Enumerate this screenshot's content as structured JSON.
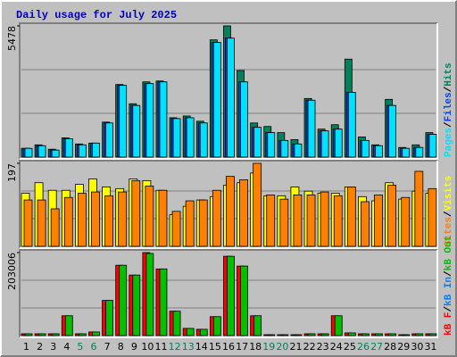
{
  "chart_data": [
    {
      "type": "bar",
      "title": "Daily usage for July 2025",
      "ylim": [
        0,
        5478
      ],
      "yticks": [
        5478
      ],
      "legend_reversed": true,
      "separator": "/",
      "series": [
        {
          "name": "Hits",
          "color": "#00805c",
          "values": [
            365,
            511,
            329,
            803,
            548,
            584,
            1461,
            3031,
            2228,
            3140,
            3177,
            1643,
            1716,
            1497,
            4894,
            5478,
            3615,
            1424,
            1278,
            1022,
            730,
            2447,
            1168,
            1351,
            4090,
            840,
            511,
            2410,
            402,
            511,
            1022
          ]
        },
        {
          "name": "Files",
          "color": "#0040ff",
          "values": [
            365,
            475,
            292,
            767,
            511,
            584,
            1424,
            2994,
            2155,
            3067,
            3140,
            1607,
            1643,
            1424,
            4784,
            4967,
            3140,
            1241,
            1022,
            694,
            548,
            2374,
            1095,
            1168,
            2703,
            694,
            475,
            2155,
            365,
            402,
            950
          ]
        },
        {
          "name": "Pages",
          "color": "#00e0ff",
          "values": [
            365,
            475,
            292,
            767,
            511,
            584,
            1424,
            2994,
            2155,
            3067,
            3140,
            1607,
            1643,
            1424,
            4784,
            4967,
            3140,
            1241,
            1022,
            694,
            548,
            2374,
            1095,
            1168,
            2703,
            694,
            475,
            2155,
            365,
            402,
            950
          ]
        }
      ]
    },
    {
      "type": "bar",
      "ylim": [
        0,
        197
      ],
      "yticks": [
        197
      ],
      "legend_reversed": true,
      "separator": "/",
      "series": [
        {
          "name": "Visits",
          "color": "#ffff00",
          "values": [
            126,
            151,
            133,
            133,
            147,
            160,
            141,
            137,
            160,
            156,
            133,
            75,
            95,
            110,
            118,
            145,
            151,
            174,
            120,
            120,
            141,
            131,
            126,
            126,
            141,
            118,
            108,
            151,
            112,
            131,
            126
          ]
        },
        {
          "name": "Sites",
          "color": "#ff8000",
          "values": [
            110,
            110,
            89,
            116,
            126,
            129,
            120,
            129,
            156,
            143,
            133,
            83,
            108,
            110,
            133,
            166,
            158,
            197,
            122,
            112,
            122,
            122,
            129,
            120,
            141,
            106,
            122,
            145,
            116,
            178,
            137
          ]
        }
      ]
    },
    {
      "type": "bar",
      "ylim": [
        0,
        203006
      ],
      "yticks": [
        203006
      ],
      "legend_reversed": false,
      "separator": "/",
      "categories": [
        "1",
        "2",
        "3",
        "4",
        "5",
        "6",
        "7",
        "8",
        "9",
        "10",
        "11",
        "12",
        "13",
        "14",
        "15",
        "16",
        "17",
        "18",
        "19",
        "20",
        "21",
        "22",
        "23",
        "24",
        "25",
        "26",
        "27",
        "28",
        "29",
        "30",
        "31"
      ],
      "category_colors": [
        "#000000",
        "#000000",
        "#000000",
        "#000000",
        "#00805c",
        "#00805c",
        "#000000",
        "#000000",
        "#000000",
        "#000000",
        "#000000",
        "#00805c",
        "#00805c",
        "#000000",
        "#000000",
        "#000000",
        "#000000",
        "#000000",
        "#00805c",
        "#00805c",
        "#000000",
        "#000000",
        "#000000",
        "#000000",
        "#000000",
        "#00805c",
        "#00805c",
        "#000000",
        "#000000",
        "#000000",
        "#000000"
      ],
      "series": [
        {
          "name": "kB F",
          "color": "#ff0000",
          "values": [
            4400,
            4400,
            4400,
            48500,
            4400,
            8800,
            86000,
            172000,
            148000,
            203006,
            163000,
            59600,
            17600,
            15400,
            46300,
            194000,
            170000,
            48500,
            2200,
            2200,
            2200,
            4400,
            4400,
            48500,
            6600,
            4400,
            4400,
            4400,
            2200,
            4400,
            4400
          ]
        },
        {
          "name": "kB In",
          "color": "#0080ff",
          "values": [
            0,
            0,
            0,
            0,
            0,
            0,
            0,
            0,
            0,
            0,
            0,
            0,
            0,
            0,
            0,
            0,
            0,
            0,
            0,
            0,
            0,
            0,
            0,
            0,
            0,
            0,
            0,
            0,
            0,
            0,
            0
          ]
        },
        {
          "name": "kB Out",
          "color": "#00c000",
          "values": [
            4400,
            4400,
            4400,
            48500,
            4400,
            8800,
            86000,
            172000,
            148000,
            200800,
            163000,
            59600,
            17600,
            15400,
            46300,
            194000,
            170000,
            48500,
            2200,
            2200,
            2200,
            4400,
            4400,
            48500,
            6600,
            4400,
            4400,
            4400,
            2200,
            4400,
            4400
          ]
        }
      ]
    }
  ]
}
